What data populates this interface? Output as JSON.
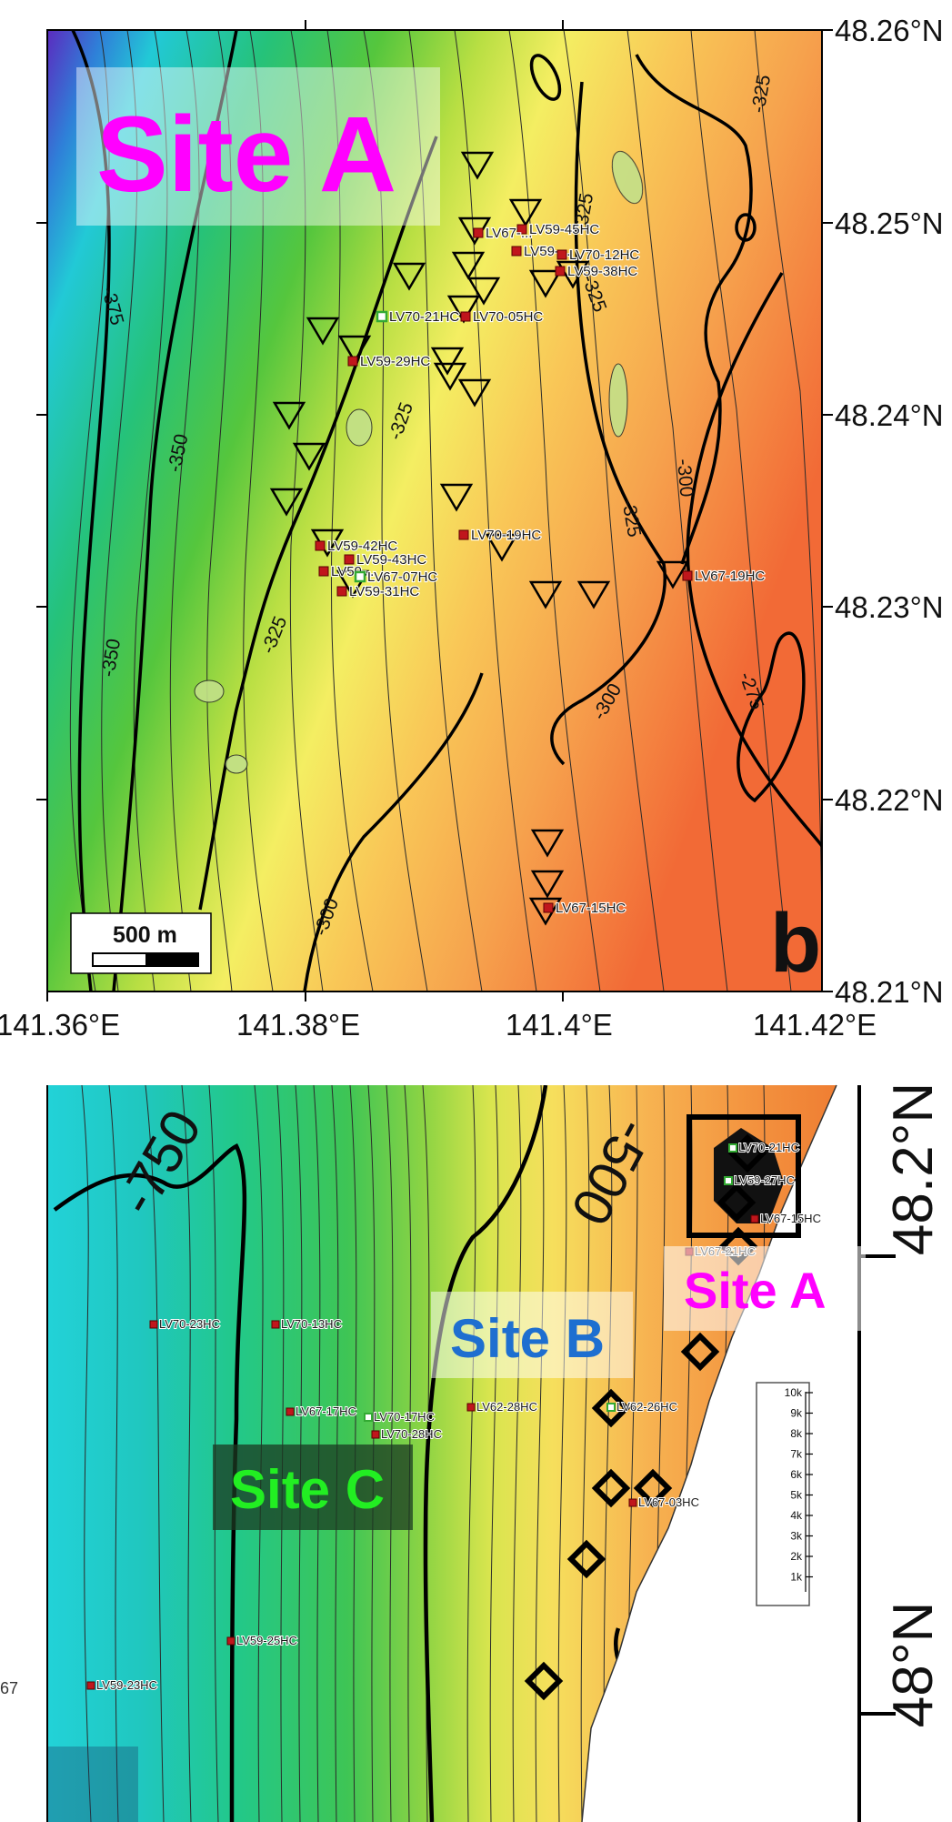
{
  "panel_b": {
    "site_label": "Site A",
    "panel_letter": "b",
    "scale_bar": "500 m",
    "lon_ticks": [
      "141.36°E",
      "141.38°E",
      "141.4°E",
      "141.42°E"
    ],
    "lat_ticks": [
      "48.26°N",
      "48.25°N",
      "48.24°N",
      "48.23°N",
      "48.22°N",
      "48.21°N"
    ],
    "contour_labels": [
      "-375",
      "-350",
      "-350",
      "-325",
      "-325",
      "-325",
      "-325",
      "-325",
      "-325",
      "-300",
      "-300",
      "-300",
      "-275"
    ],
    "stations": [
      {
        "name": "LV59-45HC",
        "type": "red"
      },
      {
        "name": "LV67-...",
        "type": "red"
      },
      {
        "name": "LV59-...",
        "type": "red"
      },
      {
        "name": "LV70-12HC",
        "type": "red"
      },
      {
        "name": "LV59-38HC",
        "type": "red"
      },
      {
        "name": "LV70-21HC",
        "type": "green"
      },
      {
        "name": "LV70-05HC",
        "type": "red"
      },
      {
        "name": "LV59-29HC",
        "type": "red"
      },
      {
        "name": "LV70-19HC",
        "type": "red"
      },
      {
        "name": "LV59-42HC",
        "type": "red"
      },
      {
        "name": "LV59-43HC",
        "type": "red"
      },
      {
        "name": "LV59-...",
        "type": "red"
      },
      {
        "name": "LV67-07HC",
        "type": "green"
      },
      {
        "name": "LV59-31HC",
        "type": "red"
      },
      {
        "name": "LV67-19HC",
        "type": "red"
      },
      {
        "name": "LV67-15HC",
        "type": "red"
      }
    ]
  },
  "panel_c": {
    "site_labels": [
      "Site A",
      "Site B",
      "Site C"
    ],
    "lat_ticks": [
      "48.2°N",
      "48°N"
    ],
    "left_cut_text": "67",
    "contour_labels": [
      "-750",
      "-500"
    ],
    "depth_scale_ticks": [
      "10k",
      "9k",
      "8k",
      "7k",
      "6k",
      "5k",
      "4k",
      "3k",
      "2k",
      "1k"
    ],
    "stations": [
      {
        "name": "LV70-21HC",
        "type": "green"
      },
      {
        "name": "LV59-27HC",
        "type": "green"
      },
      {
        "name": "LV67-15HC",
        "type": "red"
      },
      {
        "name": "LV67-21HC",
        "type": "red"
      },
      {
        "name": "LV70-23HC",
        "type": "red"
      },
      {
        "name": "LV70-13HC",
        "type": "red"
      },
      {
        "name": "LV67-17HC",
        "type": "red"
      },
      {
        "name": "LV70-17HC",
        "type": "green"
      },
      {
        "name": "LV70-28HC",
        "type": "red"
      },
      {
        "name": "LV62-28HC",
        "type": "red"
      },
      {
        "name": "LV62-26HC",
        "type": "green"
      },
      {
        "name": "LV67-03HC",
        "type": "red"
      },
      {
        "name": "LV59-25HC",
        "type": "red"
      },
      {
        "name": "LV59-23HC",
        "type": "red"
      }
    ]
  },
  "colors": {
    "site_a": "#ff00ff",
    "site_b": "#1e6fd0",
    "site_c": "#22ee22",
    "red_station": "#c0161c",
    "green_station": "#33aa33"
  }
}
